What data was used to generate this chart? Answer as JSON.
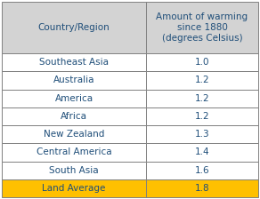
{
  "header_col1": "Country/Region",
  "header_col2": "Amount of warming\nsince 1880\n(degrees Celsius)",
  "rows": [
    [
      "Southeast Asia",
      "1.0"
    ],
    [
      "Australia",
      "1.2"
    ],
    [
      "America",
      "1.2"
    ],
    [
      "Africa",
      "1.2"
    ],
    [
      "New Zealand",
      "1.3"
    ],
    [
      "Central America",
      "1.4"
    ],
    [
      "South Asia",
      "1.6"
    ],
    [
      "Land Average",
      "1.8"
    ]
  ],
  "header_bg": "#d3d3d3",
  "header_text_color": "#1f4e79",
  "data_row_bg": "#ffffff",
  "data_text_color": "#1f4e79",
  "last_row_bg": "#ffc000",
  "last_row_text_color": "#1f4e79",
  "border_color": "#808080",
  "font_size": 7.5,
  "header_font_size": 7.5
}
